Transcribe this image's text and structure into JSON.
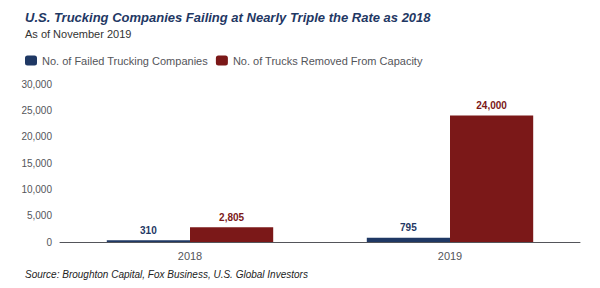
{
  "chart_data": {
    "type": "bar",
    "title": "U.S. Trucking Companies Failing at Nearly Triple the Rate as 2018",
    "subtitle": "As of November 2019",
    "source": "Source: Broughton Capital, Fox Business, U.S. Global Investors",
    "categories": [
      "2018",
      "2019"
    ],
    "series": [
      {
        "name": "No. of Failed Trucking Companies",
        "color": "#1F3864",
        "values": [
          310,
          795
        ],
        "value_labels": [
          "310",
          "795"
        ]
      },
      {
        "name": "No. of Trucks Removed From Capacity",
        "color": "#7B1818",
        "values": [
          2805,
          24000
        ],
        "value_labels": [
          "2,805",
          "24,000"
        ]
      }
    ],
    "ylim": [
      0,
      30000
    ],
    "yticks": [
      0,
      {
        "value": 5000,
        "label": "5,000"
      },
      {
        "value": 10000,
        "label": "10,000"
      },
      {
        "value": 15000,
        "label": "15,000"
      },
      {
        "value": 20000,
        "label": "20,000"
      },
      {
        "value": 25000,
        "label": "25,000"
      },
      {
        "value": 30000,
        "label": "30,000"
      }
    ],
    "grid": false,
    "legend": "top",
    "data_labels": true
  }
}
